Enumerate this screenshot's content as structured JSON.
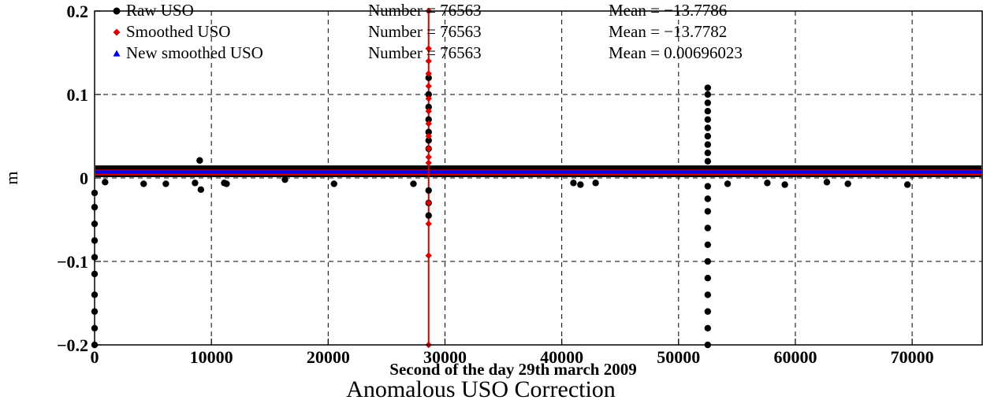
{
  "chart_data": {
    "type": "scatter",
    "title": "Anomalous USO Correction",
    "xlabel": "Second of the day 29th march 2009",
    "ylabel": "m",
    "xlim": [
      0,
      76000
    ],
    "ylim": [
      -0.2,
      0.2
    ],
    "grid": true,
    "legend_position": "top-left",
    "x_ticks": [
      0,
      10000,
      20000,
      30000,
      40000,
      50000,
      60000,
      70000
    ],
    "x_tick_labels": [
      "0",
      "10000",
      "20000",
      "30000",
      "40000",
      "50000",
      "60000",
      "70000"
    ],
    "y_ticks": [
      -0.2,
      -0.1,
      0,
      0.1,
      0.2
    ],
    "y_tick_labels": [
      "−0.2",
      "−0.1",
      "0",
      "0.1",
      "0.2"
    ],
    "series": [
      {
        "name": "Raw USO",
        "color": "#000000",
        "marker": "circle",
        "number_text": "Number = 76563",
        "mean_text": "Mean = −13.7786",
        "band": [
          0.001,
          0.015
        ],
        "points": [
          [
            0,
            -0.2
          ],
          [
            0,
            -0.18
          ],
          [
            0,
            -0.16
          ],
          [
            0,
            -0.14
          ],
          [
            0,
            -0.115
          ],
          [
            0,
            -0.095
          ],
          [
            0,
            -0.075
          ],
          [
            0,
            -0.055
          ],
          [
            0,
            -0.035
          ],
          [
            0,
            -0.018
          ],
          [
            900,
            -0.005
          ],
          [
            4200,
            -0.007
          ],
          [
            6100,
            -0.007
          ],
          [
            8600,
            -0.006
          ],
          [
            9000,
            0.021
          ],
          [
            9100,
            -0.014
          ],
          [
            11100,
            -0.006
          ],
          [
            11300,
            -0.007
          ],
          [
            16300,
            -0.002
          ],
          [
            20500,
            -0.007
          ],
          [
            27300,
            -0.007
          ],
          [
            28600,
            0.12
          ],
          [
            28600,
            0.1
          ],
          [
            28600,
            0.085
          ],
          [
            28600,
            0.07
          ],
          [
            28600,
            0.055
          ],
          [
            28600,
            0.045
          ],
          [
            28600,
            0.035
          ],
          [
            28600,
            -0.015
          ],
          [
            28600,
            -0.03
          ],
          [
            28600,
            -0.045
          ],
          [
            41000,
            -0.006
          ],
          [
            41600,
            -0.008
          ],
          [
            42900,
            -0.006
          ],
          [
            52500,
            0.108
          ],
          [
            52500,
            0.1
          ],
          [
            52500,
            0.09
          ],
          [
            52500,
            0.08
          ],
          [
            52500,
            0.07
          ],
          [
            52500,
            0.06
          ],
          [
            52500,
            0.05
          ],
          [
            52500,
            0.04
          ],
          [
            52500,
            0.03
          ],
          [
            52500,
            0.02
          ],
          [
            52500,
            -0.01
          ],
          [
            52500,
            -0.025
          ],
          [
            52500,
            -0.04
          ],
          [
            52500,
            -0.06
          ],
          [
            52500,
            -0.08
          ],
          [
            52500,
            -0.1
          ],
          [
            52500,
            -0.12
          ],
          [
            52500,
            -0.14
          ],
          [
            52500,
            -0.16
          ],
          [
            52500,
            -0.18
          ],
          [
            52500,
            -0.2
          ],
          [
            54200,
            -0.007
          ],
          [
            57600,
            -0.006
          ],
          [
            59100,
            -0.008
          ],
          [
            62700,
            -0.005
          ],
          [
            64500,
            -0.007
          ],
          [
            69600,
            -0.008
          ]
        ]
      },
      {
        "name": "Smoothed USO",
        "color": "#d90000",
        "marker": "diamond",
        "number_text": "Number = 76563",
        "mean_text": "Mean = −13.7782",
        "band": [
          0.003,
          0.01
        ],
        "spike_x": 28600,
        "points": [
          [
            28600,
            0.2
          ],
          [
            28600,
            0.155
          ],
          [
            28600,
            0.14
          ],
          [
            28600,
            0.125
          ],
          [
            28600,
            0.11
          ],
          [
            28600,
            0.095
          ],
          [
            28600,
            0.08
          ],
          [
            28600,
            0.065
          ],
          [
            28600,
            0.05
          ],
          [
            28600,
            0.035
          ],
          [
            28600,
            0.025
          ],
          [
            28600,
            0.018
          ],
          [
            28600,
            -0.03
          ],
          [
            28600,
            -0.055
          ],
          [
            28600,
            -0.093
          ],
          [
            28600,
            -0.2
          ]
        ]
      },
      {
        "name": "New smoothed USO",
        "color": "#0000ee",
        "marker": "triangle",
        "number_text": "Number = 76563",
        "mean_text": "Mean = 0.00696023",
        "band": [
          0.005,
          0.009
        ],
        "points": []
      }
    ]
  }
}
